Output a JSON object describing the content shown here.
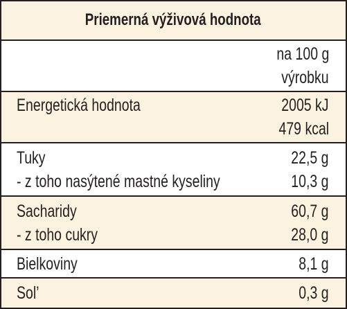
{
  "title": "Priemerná výživová hodnota",
  "column_header": [
    "na 100 g",
    "výrobku"
  ],
  "groups": [
    {
      "labels": [
        "Energetická hodnota"
      ],
      "values": [
        "2005 kJ",
        "479 kcal"
      ]
    },
    {
      "labels": [
        "Tuky",
        "- z toho nasýtené mastné kyseliny"
      ],
      "values": [
        "22,5 g",
        "10,3 g"
      ]
    },
    {
      "labels": [
        "Sacharidy",
        "- z toho cukry"
      ],
      "values": [
        "60,7 g",
        "28,0 g"
      ]
    },
    {
      "labels": [
        "Bielkoviny"
      ],
      "values": [
        "8,1 g"
      ]
    },
    {
      "labels": [
        "Sol’"
      ],
      "values": [
        "0,3 g"
      ]
    }
  ]
}
